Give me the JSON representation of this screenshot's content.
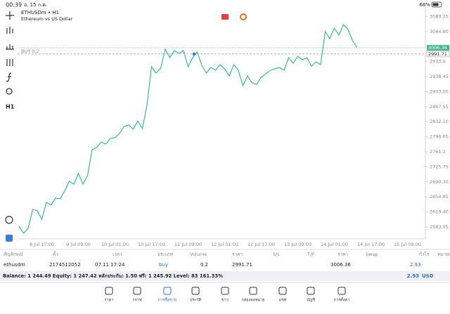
{
  "status_bar": {
    "time": "00:39",
    "date": "อ. 15 ก.ค.",
    "battery": "68%"
  },
  "chart": {
    "type": "line",
    "symbol": "ETHUSDm • H1",
    "description": "Ethereum vs US Dollar",
    "timeframe": "H1",
    "position_label": "BUY 0.2",
    "x_labels": [
      "8 Jul 17:00",
      "9 Jul 09:00",
      "10 Jul 01:00",
      "10 Jul 17:00",
      "11 Jul 09:00",
      "12 Jul 01:00",
      "12 Jul 17:00",
      "13 Jul 09:00",
      "14 Jul 01:00",
      "14 Jul 17:00",
      "15 Jul 09:00"
    ],
    "values": [
      2585.6,
      2569.0,
      2580.6,
      2625.4,
      2622.1,
      2602.2,
      2641.9,
      2635.3,
      2651.9,
      2650.2,
      2668.4,
      2691.6,
      2685.0,
      2709.8,
      2685.0,
      2704.9,
      2766.2,
      2771.1,
      2784.4,
      2779.4,
      2792.7,
      2794.3,
      2804.3,
      2820.8,
      2824.2,
      2814.2,
      2834.1,
      2815.9,
      2870.5,
      2961.7,
      2946.7,
      2958.3,
      3003.1,
      2983.2,
      2999.8,
      2993.1,
      2999.8,
      2961.7,
      2983.2,
      2996.5,
      2965.0,
      2946.7,
      2960.0,
      2953.4,
      2966.6,
      2956.7,
      2940.1,
      2966.6,
      2953.4,
      2917.0,
      2940.1,
      2923.6,
      2920.2,
      2936.8,
      2945.1,
      2953.4,
      2956.7,
      2960.0,
      2953.4,
      2983.2,
      2969.9,
      2986.5,
      2978.2,
      2983.2,
      2963.3,
      2973.3,
      2966.6,
      3044.5,
      3027.9,
      3052.8,
      3036.2,
      3061.1,
      3049.5,
      3022.9,
      3006.36
    ],
    "color": "#45b98c",
    "ylim": [
      2555.8,
      3102.5
    ],
    "yticks": [
      3080.25,
      {
        "value": 3044.8,
        "label": "3044.80"
      },
      2973.9,
      2938.45,
      {
        "value": 2903.0,
        "label": "2903.00"
      },
      2867.55,
      {
        "value": 2832.1,
        "label": "2832.10"
      },
      2796.65,
      2761.2,
      2725.75,
      {
        "value": 2690.3,
        "label": "2690.30"
      },
      2654.85,
      {
        "value": 2619.4,
        "label": "2619.40"
      },
      2583.95
    ],
    "bid": 3006.36,
    "open_price": 2991.71
  },
  "table": {
    "headers": [
      "สัญลักษณ์",
      "ตั๋ว",
      "เวลา",
      "ประเภท",
      "Volume",
      "ราคา",
      "S/L",
      "T/P",
      "ราคา",
      "Swap",
      "กำไร",
      "หมายเหตุ"
    ],
    "row": {
      "symbol": "ethusdm",
      "ticket": "2174512052",
      "time": "07.11 17:24",
      "type": "buy",
      "volume": "0.2",
      "open_price": "2991.71",
      "current_price": "3006.36",
      "profit": "2.93"
    }
  },
  "balance_line": "Balance: 1 244.49 Equity: 1 247.42 หลักประกัน: 1.50 ฟรี: 1 245.92 Level: 83 161.33%",
  "total_profit": "2.93",
  "currency": "USD",
  "nav": [
    "ราคา",
    "กราฟ",
    "การซื้อขาย",
    "ประวัติ",
    "ข่าว",
    "กล่องจดหมาย",
    "แชท",
    "บัญชี",
    "การตั้งค่า"
  ]
}
